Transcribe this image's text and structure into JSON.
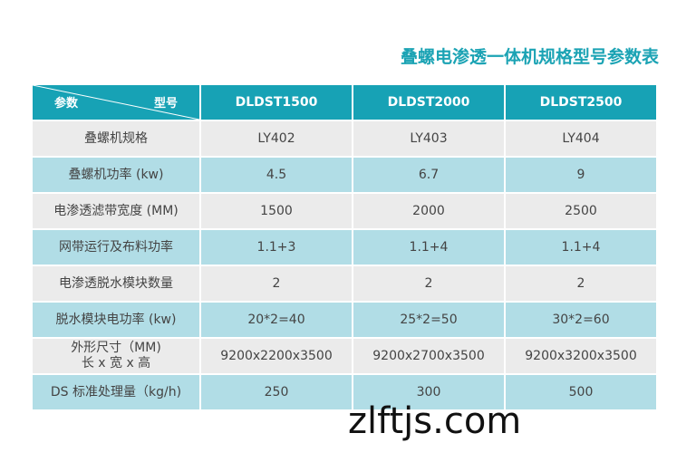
{
  "header": {
    "title": "叠螺电渗透一体机规格型号参数表"
  },
  "table": {
    "corner": {
      "left": "参数",
      "right": "型号"
    },
    "columns": [
      "DLDST1500",
      "DLDST2000",
      "DLDST2500"
    ],
    "rows": [
      [
        [
          "叠螺机规格"
        ],
        "LY402",
        "LY403",
        "LY404"
      ],
      [
        [
          "叠螺机功率 (kw)"
        ],
        "4.5",
        "6.7",
        "9"
      ],
      [
        [
          "电渗透滤带宽度 (MM)"
        ],
        "1500",
        "2000",
        "2500"
      ],
      [
        [
          "网带运行及布料功率"
        ],
        "1.1+3",
        "1.1+4",
        "1.1+4"
      ],
      [
        [
          "电渗透脱水模块数量"
        ],
        "2",
        "2",
        "2"
      ],
      [
        [
          "脱水模块电功率 (kw)"
        ],
        "20*2=40",
        "25*2=50",
        "30*2=60"
      ],
      [
        [
          "外形尺寸（MM)",
          "长 x 宽 x 高"
        ],
        "9200x2200x3500",
        "9200x2700x3500",
        "9200x3200x3500"
      ],
      [
        [
          "DS 标准处理量（kg/h)"
        ],
        "250",
        "300",
        "500"
      ]
    ]
  },
  "watermark": "zlftjs.com"
}
